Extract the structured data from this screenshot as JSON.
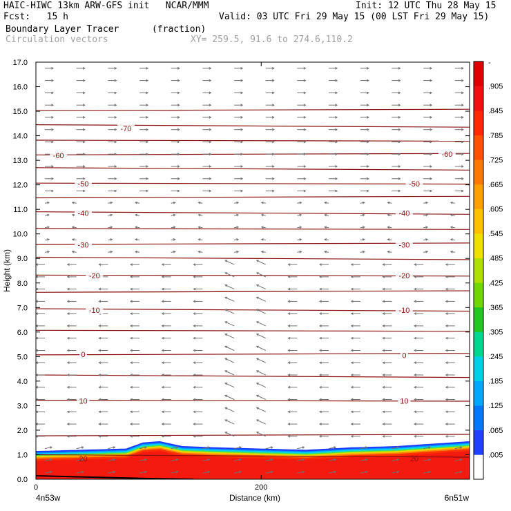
{
  "header": {
    "line1_left": "HAIC-HIWC 13km ARW-GFS init   NCAR/MMM",
    "line1_right": "Init: 12 UTC Thu 28 May 15",
    "line2_left": "Fcst:   15 h",
    "line2_right": "Valid: 03 UTC Fri 29 May 15 (00 LST Fri 29 May 15)",
    "line3_left": "Boundary Layer Tracer",
    "line3_units": "(fraction)",
    "line4_left": "Circulation vectors",
    "line4_xy": "XY= 259.5, 91.6 to 274.6,110.2"
  },
  "chart_data": {
    "type": "heatmap",
    "title": "Boundary Layer Tracer",
    "units": "(fraction)",
    "overlay": "Circulation vectors",
    "xlabel": "Distance (km)",
    "ylabel": "Height (km)",
    "xlim": [
      0,
      385
    ],
    "ylim": [
      0,
      17
    ],
    "x_ticks": [
      0,
      200
    ],
    "y_ticks": [
      "0.0",
      "1.0",
      "2.0",
      "3.0",
      "4.0",
      "5.0",
      "6.0",
      "7.0",
      "8.0",
      "9.0",
      "10.0",
      "11.0",
      "12.0",
      "13.0",
      "14.0",
      "15.0",
      "16.0",
      "17.0"
    ],
    "x_end_labels": {
      "left": "4n53w",
      "right": "6n51w"
    },
    "colorbar": {
      "ticks": [
        ".005",
        ".065",
        ".125",
        ".185",
        ".245",
        ".305",
        ".365",
        ".425",
        ".485",
        ".545",
        ".605",
        ".665",
        ".725",
        ".785",
        ".845",
        ".905"
      ],
      "top_label": "-",
      "colors": [
        "#ffffff",
        "#2040ff",
        "#0078ff",
        "#00a8ff",
        "#00d0e8",
        "#00d890",
        "#20c820",
        "#70d800",
        "#b0e000",
        "#f0e000",
        "#ffc000",
        "#ffa000",
        "#ff7800",
        "#ff5000",
        "#ff2800",
        "#f01010",
        "#e00000"
      ]
    },
    "tracer_top_km": [
      {
        "x": 0,
        "top": 1.15
      },
      {
        "x": 40,
        "top": 1.2
      },
      {
        "x": 80,
        "top": 1.25
      },
      {
        "x": 95,
        "top": 1.5
      },
      {
        "x": 110,
        "top": 1.55
      },
      {
        "x": 130,
        "top": 1.35
      },
      {
        "x": 160,
        "top": 1.3
      },
      {
        "x": 200,
        "top": 1.25
      },
      {
        "x": 240,
        "top": 1.2
      },
      {
        "x": 280,
        "top": 1.3
      },
      {
        "x": 320,
        "top": 1.35
      },
      {
        "x": 385,
        "top": 1.55
      }
    ],
    "temperature_contour_labels": [
      {
        "label": "-70",
        "x": 80,
        "y": 14.3
      },
      {
        "label": "-60",
        "x": 20,
        "y": 13.2
      },
      {
        "label": "-60",
        "x": 365,
        "y": 13.25
      },
      {
        "label": "-50",
        "x": 42,
        "y": 12.05
      },
      {
        "label": "-50",
        "x": 336,
        "y": 12.05
      },
      {
        "label": "-40",
        "x": 42,
        "y": 10.85
      },
      {
        "label": "-40",
        "x": 327,
        "y": 10.85
      },
      {
        "label": "-30",
        "x": 42,
        "y": 9.55
      },
      {
        "label": "-30",
        "x": 327,
        "y": 9.55
      },
      {
        "label": "-20",
        "x": 52,
        "y": 8.3
      },
      {
        "label": "-20",
        "x": 327,
        "y": 8.3
      },
      {
        "label": "-10",
        "x": 52,
        "y": 6.9
      },
      {
        "label": "-10",
        "x": 327,
        "y": 6.9
      },
      {
        "label": "0",
        "x": 42,
        "y": 5.1
      },
      {
        "label": "0",
        "x": 327,
        "y": 5.05
      },
      {
        "label": "10",
        "x": 42,
        "y": 3.2
      },
      {
        "label": "10",
        "x": 327,
        "y": 3.2
      },
      {
        "label": "20",
        "x": 42,
        "y": 0.85
      },
      {
        "label": "20",
        "x": 336,
        "y": 0.85
      }
    ],
    "contour_heights_km": [
      0.95,
      1.8,
      3.2,
      4.2,
      5.1,
      6.05,
      6.9,
      7.65,
      8.3,
      9.0,
      9.6,
      10.2,
      10.85,
      11.5,
      12.05,
      12.65,
      13.25,
      13.8,
      14.4,
      15.05
    ]
  }
}
